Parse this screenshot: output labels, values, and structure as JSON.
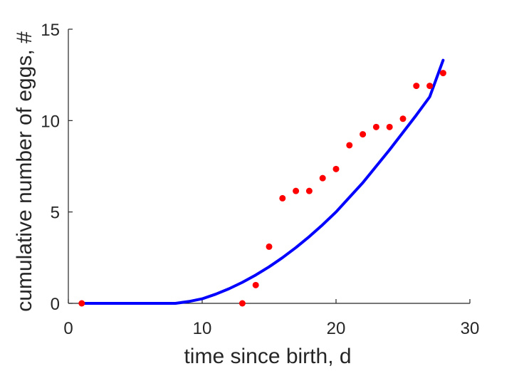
{
  "chart_data": {
    "type": "scatter",
    "title": "",
    "xlabel": "time since birth, d",
    "ylabel": "cumulative number of eggs, #",
    "xlim": [
      0,
      30
    ],
    "ylim": [
      0,
      15
    ],
    "xticks": [
      "0",
      "10",
      "20",
      "30"
    ],
    "yticks": [
      "0",
      "5",
      "10",
      "15"
    ],
    "grid": false,
    "legend": "none",
    "series": [
      {
        "kind": "scatter",
        "color": "#ff0000",
        "x": [
          1,
          13,
          14,
          15,
          16,
          17,
          18,
          19,
          20,
          21,
          22,
          23,
          24,
          25,
          26,
          27,
          28
        ],
        "y": [
          0,
          0,
          1,
          3.1,
          5.75,
          6.15,
          6.15,
          6.85,
          7.35,
          8.65,
          9.25,
          9.65,
          9.65,
          10.1,
          11.9,
          11.9,
          12.6
        ]
      },
      {
        "kind": "line",
        "color": "#0000ff",
        "x": [
          1,
          8,
          9,
          10,
          11,
          12,
          13,
          14,
          15,
          16,
          17,
          18,
          19,
          20,
          21,
          22,
          23,
          24,
          25,
          26,
          27,
          28
        ],
        "y": [
          0,
          0,
          0.1,
          0.25,
          0.5,
          0.8,
          1.15,
          1.55,
          2.0,
          2.5,
          3.05,
          3.65,
          4.3,
          5.0,
          5.8,
          6.6,
          7.5,
          8.4,
          9.35,
          10.3,
          11.3,
          13.3
        ]
      }
    ]
  }
}
